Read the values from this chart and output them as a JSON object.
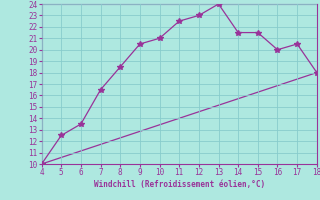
{
  "xlabel": "Windchill (Refroidissement éolien,°C)",
  "line1_x": [
    4,
    5,
    6,
    7,
    8,
    9,
    10,
    11,
    12,
    13,
    14,
    15,
    16,
    17,
    18
  ],
  "line1_y": [
    10,
    12.5,
    13.5,
    16.5,
    18.5,
    20.5,
    21,
    22.5,
    23,
    24,
    21.5,
    21.5,
    20,
    20.5,
    18
  ],
  "line2_x": [
    4,
    18
  ],
  "line2_y": [
    10,
    18
  ],
  "line_color": "#993399",
  "marker": "*",
  "bg_color": "#aee8e0",
  "grid_color": "#88cccc",
  "xlim": [
    4,
    18
  ],
  "ylim": [
    10,
    24
  ],
  "xticks": [
    4,
    5,
    6,
    7,
    8,
    9,
    10,
    11,
    12,
    13,
    14,
    15,
    16,
    17,
    18
  ],
  "yticks": [
    10,
    11,
    12,
    13,
    14,
    15,
    16,
    17,
    18,
    19,
    20,
    21,
    22,
    23,
    24
  ],
  "xlabel_fontsize": 5.5,
  "tick_fontsize": 5.5
}
